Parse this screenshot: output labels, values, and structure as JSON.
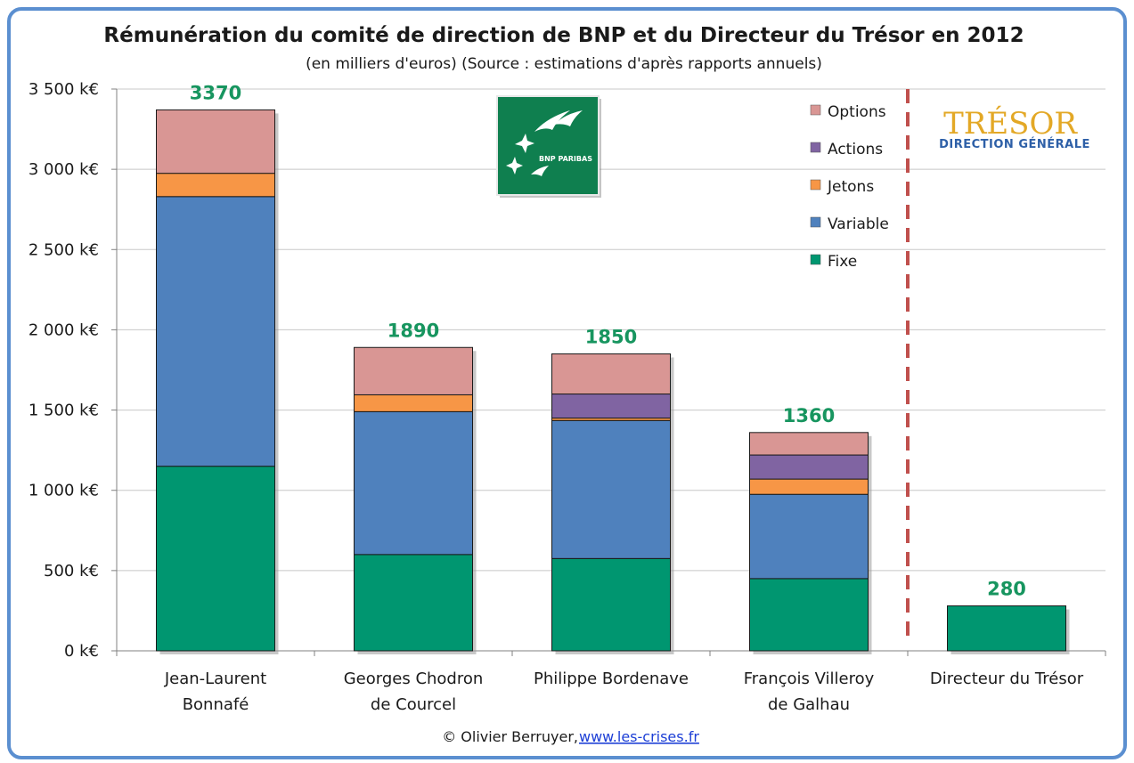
{
  "chart_data": {
    "type": "bar",
    "stacked": true,
    "title": "Rémunération du comité de direction de BNP et du Directeur du Trésor en 2012",
    "subtitle": "(en milliers d'euros) (Source : estimations d'après rapports annuels)",
    "ylim": [
      0,
      3500
    ],
    "yticks": [
      "0 k€",
      "500 k€",
      "1 000 k€",
      "1 500 k€",
      "2 000 k€",
      "2 500 k€",
      "3 000 k€",
      "3 500 k€"
    ],
    "ytick_values": [
      0,
      500,
      1000,
      1500,
      2000,
      2500,
      3000,
      3500
    ],
    "categories": [
      [
        "Jean-Laurent",
        "Bonnafé"
      ],
      [
        "Georges Chodron",
        "de Courcel"
      ],
      [
        "Philippe Bordenave"
      ],
      [
        "François Villeroy",
        "de Galhau"
      ],
      [
        "Directeur du Trésor"
      ]
    ],
    "series": [
      {
        "name": "Fixe",
        "color": "#009670",
        "values": [
          1150,
          600,
          575,
          450,
          280
        ]
      },
      {
        "name": "Variable",
        "color": "#4f81bd",
        "values": [
          1680,
          890,
          860,
          525,
          0
        ]
      },
      {
        "name": "Jetons",
        "color": "#f79646",
        "values": [
          145,
          105,
          15,
          95,
          0
        ]
      },
      {
        "name": "Actions",
        "color": "#8064a2",
        "values": [
          0,
          0,
          150,
          150,
          0
        ]
      },
      {
        "name": "Options",
        "color": "#d99694",
        "values": [
          395,
          295,
          250,
          140,
          0
        ]
      }
    ],
    "totals": [
      "3370",
      "1890",
      "1850",
      "1360",
      "280"
    ],
    "legend_position": "top-right",
    "grid": true,
    "separator_after_category": 4
  },
  "logos": {
    "bnp": {
      "text": "BNP PARIBAS",
      "icon": "stars-birds-icon"
    },
    "tresor": {
      "big": "TRÉSOR",
      "small": "DIRECTION GÉNÉRALE"
    }
  },
  "footer": {
    "credit": "© Olivier Berruyer,",
    "link": "www.les-crises.fr"
  }
}
